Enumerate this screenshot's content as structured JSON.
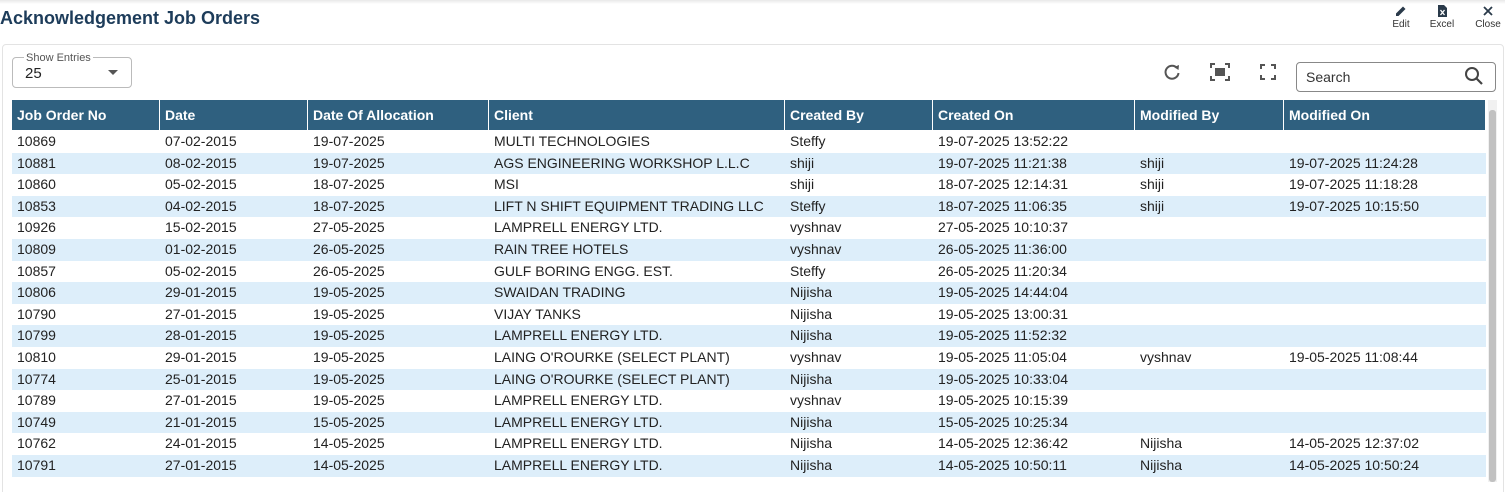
{
  "header": {
    "title": "Acknowledgement Job Orders",
    "actions": [
      "Edit",
      "Excel",
      "Close"
    ]
  },
  "controls": {
    "show_entries_label": "Show Entries",
    "show_entries_value": "25",
    "search_placeholder": "Search"
  },
  "table": {
    "columns": [
      "Job Order No",
      "Date",
      "Date Of Allocation",
      "Client",
      "Created By",
      "Created On",
      "Modified By",
      "Modified On"
    ],
    "rows": [
      [
        "10869",
        "07-02-2015",
        "19-07-2025",
        "MULTI TECHNOLOGIES",
        "Steffy",
        "19-07-2025 13:52:22",
        null,
        null
      ],
      [
        "10881",
        "08-02-2015",
        "19-07-2025",
        "AGS ENGINEERING WORKSHOP L.L.C",
        "shiji",
        "19-07-2025 11:21:38",
        "shiji",
        "19-07-2025 11:24:28"
      ],
      [
        "10860",
        "05-02-2015",
        "18-07-2025",
        "MSI",
        "shiji",
        "18-07-2025 12:14:31",
        "shiji",
        "19-07-2025 11:18:28"
      ],
      [
        "10853",
        "04-02-2015",
        "18-07-2025",
        "LIFT N SHIFT EQUIPMENT TRADING LLC",
        "Steffy",
        "18-07-2025 11:06:35",
        "shiji",
        "19-07-2025 10:15:50"
      ],
      [
        "10926",
        "15-02-2015",
        "27-05-2025",
        "LAMPRELL ENERGY LTD.",
        "vyshnav",
        "27-05-2025 10:10:37",
        null,
        null
      ],
      [
        "10809",
        "01-02-2015",
        "26-05-2025",
        "RAIN TREE HOTELS",
        "vyshnav",
        "26-05-2025 11:36:00",
        null,
        null
      ],
      [
        "10857",
        "05-02-2015",
        "26-05-2025",
        "GULF BORING ENGG. EST.",
        "Steffy",
        "26-05-2025 11:20:34",
        null,
        null
      ],
      [
        "10806",
        "29-01-2015",
        "19-05-2025",
        "SWAIDAN TRADING",
        "Nijisha",
        "19-05-2025 14:44:04",
        null,
        null
      ],
      [
        "10790",
        "27-01-2015",
        "19-05-2025",
        "VIJAY TANKS",
        "Nijisha",
        "19-05-2025 13:00:31",
        null,
        null
      ],
      [
        "10799",
        "28-01-2015",
        "19-05-2025",
        "LAMPRELL ENERGY LTD.",
        "Nijisha",
        "19-05-2025 11:52:32",
        null,
        null
      ],
      [
        "10810",
        "29-01-2015",
        "19-05-2025",
        "LAING O'ROURKE (SELECT PLANT)",
        "vyshnav",
        "19-05-2025 11:05:04",
        "vyshnav",
        "19-05-2025 11:08:44"
      ],
      [
        "10774",
        "25-01-2015",
        "19-05-2025",
        "LAING O'ROURKE (SELECT PLANT)",
        "Nijisha",
        "19-05-2025 10:33:04",
        null,
        null
      ],
      [
        "10789",
        "27-01-2015",
        "19-05-2025",
        "LAMPRELL ENERGY LTD.",
        "vyshnav",
        "19-05-2025 10:15:39",
        null,
        null
      ],
      [
        "10749",
        "21-01-2015",
        "15-05-2025",
        "LAMPRELL ENERGY LTD.",
        "Nijisha",
        "15-05-2025 10:25:34",
        null,
        null
      ],
      [
        "10762",
        "24-01-2015",
        "14-05-2025",
        "LAMPRELL ENERGY LTD.",
        "Nijisha",
        "14-05-2025 12:36:42",
        "Nijisha",
        "14-05-2025 12:37:02"
      ],
      [
        "10791",
        "27-01-2015",
        "14-05-2025",
        "LAMPRELL ENERGY LTD.",
        "Nijisha",
        "14-05-2025 10:50:11",
        "Nijisha",
        "14-05-2025 10:50:24"
      ]
    ]
  }
}
